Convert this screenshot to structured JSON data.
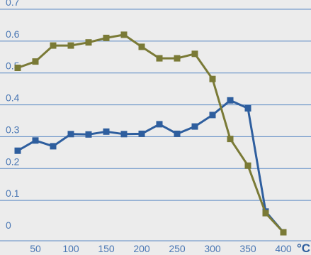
{
  "chart_data": {
    "type": "line",
    "title": "",
    "xlabel": "",
    "x_unit": "°C",
    "ylabel": "",
    "xlim": [
      0,
      430
    ],
    "ylim": [
      0,
      0.72
    ],
    "x_ticks": [
      50,
      100,
      150,
      200,
      250,
      300,
      350,
      400
    ],
    "y_ticks": [
      0,
      0.1,
      0.2,
      0.3,
      0.4,
      0.5,
      0.6,
      0.7
    ],
    "x_tick_labels": [
      "50",
      "100",
      "150",
      "200",
      "250",
      "300",
      "350",
      "400"
    ],
    "y_tick_labels": [
      "0",
      "0.1",
      "0.2",
      "0.3",
      "0.4",
      "0.5",
      "0.6",
      "0.7"
    ],
    "grid": "horizontal",
    "legend": "none",
    "series": [
      {
        "color": "#2e5e9e",
        "marker": "square",
        "x": [
          25,
          50,
          75,
          100,
          125,
          150,
          175,
          200,
          225,
          250,
          275,
          300,
          325,
          350,
          375,
          400
        ],
        "y": [
          0.256,
          0.288,
          0.27,
          0.308,
          0.307,
          0.316,
          0.308,
          0.309,
          0.339,
          0.309,
          0.332,
          0.368,
          0.414,
          0.389,
          0.065,
          0.0
        ]
      },
      {
        "color": "#7a7a36",
        "marker": "square",
        "x": [
          25,
          50,
          75,
          100,
          125,
          150,
          175,
          200,
          225,
          250,
          275,
          300,
          325,
          350,
          375,
          400
        ],
        "y": [
          0.516,
          0.536,
          0.586,
          0.586,
          0.596,
          0.61,
          0.62,
          0.582,
          0.546,
          0.546,
          0.56,
          0.481,
          0.293,
          0.209,
          0.06,
          0.0
        ]
      }
    ]
  }
}
